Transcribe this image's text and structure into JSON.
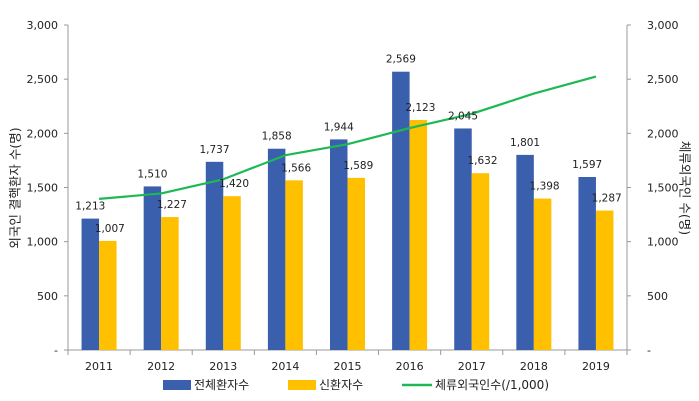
{
  "chart_data": {
    "type": "bar",
    "categories": [
      "2011",
      "2012",
      "2013",
      "2014",
      "2015",
      "2016",
      "2017",
      "2018",
      "2019"
    ],
    "series": [
      {
        "name": "전체환자수",
        "type": "bar",
        "axis": "left",
        "color": "#3A5FAD",
        "values": [
          1213,
          1510,
          1737,
          1858,
          1944,
          2569,
          2045,
          1801,
          1597
        ]
      },
      {
        "name": "신환자수",
        "type": "bar",
        "axis": "left",
        "color": "#FFC000",
        "values": [
          1007,
          1227,
          1420,
          1566,
          1589,
          2123,
          1632,
          1398,
          1287
        ]
      },
      {
        "name": "체류외국인수(/1,000)",
        "type": "line",
        "axis": "right",
        "color": "#1DB954",
        "values": [
          1395,
          1445,
          1576,
          1798,
          1900,
          2049,
          2180,
          2367,
          2524
        ]
      }
    ],
    "y_left": {
      "label": "외국인 결핵환자 수(명)",
      "ylim": [
        0,
        3000
      ],
      "ticks": [
        "-",
        "500",
        "1,000",
        "1,500",
        "2,000",
        "2,500",
        "3,000"
      ]
    },
    "y_right": {
      "label": "체류외국인 수(명)",
      "ylim": [
        0,
        3000
      ],
      "ticks": [
        "-",
        "500",
        "1,000",
        "1,500",
        "2,000",
        "2,500",
        "3,000"
      ]
    },
    "data_labels": {
      "전체환자수": [
        "1,213",
        "1,510",
        "1,737",
        "1,858",
        "1,944",
        "2,569",
        "2,045",
        "1,801",
        "1,597"
      ],
      "신환자수": [
        "1,007",
        "1,227",
        "1,420",
        "1,566",
        "1,589",
        "2,123",
        "1,632",
        "1,398",
        "1,287"
      ]
    },
    "legend_position": "bottom",
    "grid": false
  }
}
